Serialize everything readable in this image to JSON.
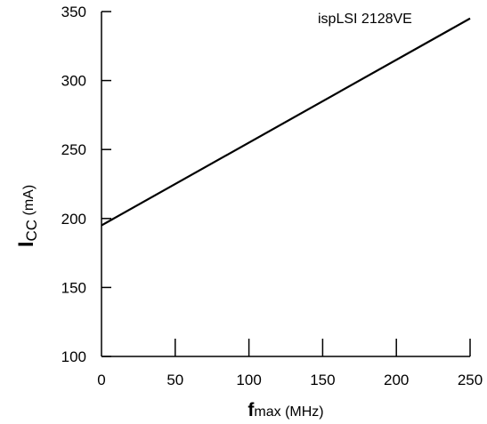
{
  "chart_data": {
    "type": "line",
    "annotation": "ispLSI 2128VE",
    "x_values": [
      0,
      250
    ],
    "y_values": [
      195,
      345
    ],
    "xlabel": {
      "bold_prefix": "f",
      "main": "max",
      "unit": " (MHz)"
    },
    "ylabel": {
      "bold_prefix": "I",
      "subscript": "CC",
      "unit": " (mA)"
    },
    "xlim": [
      0,
      250
    ],
    "ylim": [
      100,
      350
    ],
    "xticks": [
      "0",
      "50",
      "100",
      "150",
      "200",
      "250"
    ],
    "yticks": [
      "100",
      "150",
      "200",
      "250",
      "300",
      "350"
    ],
    "grid": false,
    "line_color": "#000000"
  }
}
